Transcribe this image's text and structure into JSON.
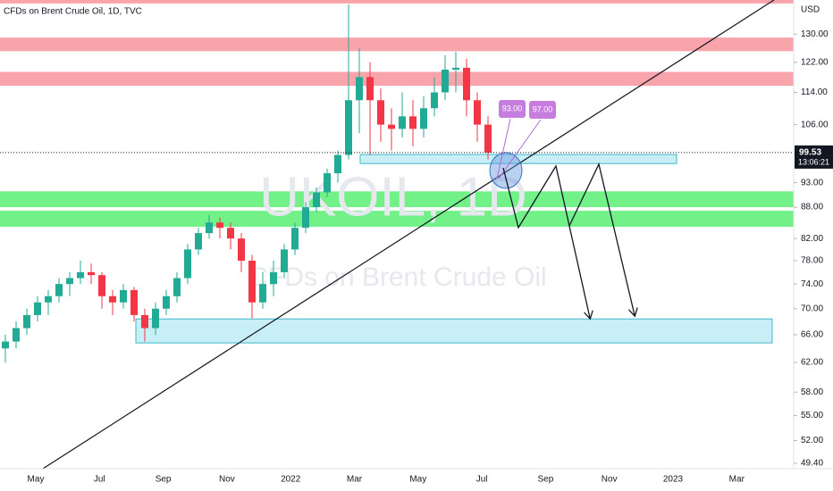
{
  "chart_data": {
    "type": "candlestick",
    "title": "CFDs on Brent Crude Oil, 1D, TVC",
    "watermark": "UKOIL, 1D",
    "watermark_subtitle": "CFDs on Brent Crude Oil",
    "currency": "USD",
    "log_scale": true,
    "grid": false,
    "up_color": "#22ab94",
    "down_color": "#f23645",
    "x_labels": [
      "May",
      "Jul",
      "Sep",
      "Nov",
      "2022",
      "Mar",
      "May",
      "Jul",
      "Sep",
      "Nov",
      "2023",
      "Mar"
    ],
    "candles": [
      [
        64,
        66,
        62,
        65
      ],
      [
        65,
        68,
        64,
        67
      ],
      [
        67,
        70,
        66,
        69
      ],
      [
        69,
        72,
        68,
        71
      ],
      [
        71,
        73,
        69,
        72
      ],
      [
        72,
        75,
        71,
        74
      ],
      [
        74,
        76,
        72,
        75
      ],
      [
        75,
        78,
        74,
        76
      ],
      [
        76,
        77.5,
        74,
        75.5
      ],
      [
        75.5,
        76,
        70,
        72
      ],
      [
        72,
        73,
        69,
        71
      ],
      [
        71,
        74,
        70,
        73
      ],
      [
        73,
        73.5,
        68,
        69
      ],
      [
        69,
        70,
        65,
        67
      ],
      [
        67,
        71,
        66,
        70
      ],
      [
        70,
        73,
        69,
        72
      ],
      [
        72,
        76,
        71,
        75
      ],
      [
        75,
        81,
        74,
        80
      ],
      [
        80,
        84,
        79,
        83
      ],
      [
        83,
        86.5,
        82,
        85
      ],
      [
        85,
        86,
        82,
        84
      ],
      [
        84,
        85,
        80,
        82
      ],
      [
        82,
        83,
        76,
        78
      ],
      [
        78,
        79,
        68.5,
        71
      ],
      [
        71,
        76,
        70,
        74
      ],
      [
        74,
        78,
        72,
        76
      ],
      [
        76,
        81,
        75,
        80
      ],
      [
        80,
        85,
        79,
        84
      ],
      [
        84,
        89,
        83,
        88
      ],
      [
        88,
        92,
        87,
        91
      ],
      [
        91,
        96,
        90,
        95
      ],
      [
        95,
        100,
        93,
        99
      ],
      [
        99,
        139,
        98,
        112
      ],
      [
        112,
        126,
        104,
        118
      ],
      [
        118,
        122,
        99,
        112
      ],
      [
        112,
        115,
        102,
        106
      ],
      [
        106,
        110,
        100,
        105
      ],
      [
        105,
        114,
        103,
        108
      ],
      [
        108,
        112,
        101,
        105
      ],
      [
        105,
        113,
        103,
        110
      ],
      [
        110,
        118,
        108,
        114
      ],
      [
        114,
        124,
        112,
        120
      ],
      [
        120,
        125,
        114,
        120.5
      ],
      [
        120.5,
        123,
        108,
        112
      ],
      [
        112,
        114,
        102,
        106
      ],
      [
        106,
        108,
        98,
        99.53
      ]
    ],
    "last_price": 99.53,
    "countdown": "13:06:21",
    "ylim": [
      48.8,
      140.4
    ],
    "yticks": [
      {
        "value": 130,
        "label": "130.00"
      },
      {
        "value": 122,
        "label": "122.00"
      },
      {
        "value": 114,
        "label": "114.00"
      },
      {
        "value": 106,
        "label": "106.00"
      },
      {
        "value": 93,
        "label": "93.00"
      },
      {
        "value": 88,
        "label": "88.00"
      },
      {
        "value": 82,
        "label": "82.00"
      },
      {
        "value": 78,
        "label": "78.00"
      },
      {
        "value": 74,
        "label": "74.00"
      },
      {
        "value": 70,
        "label": "70.00"
      },
      {
        "value": 66,
        "label": "66.00"
      },
      {
        "value": 62,
        "label": "62.00"
      },
      {
        "value": 58,
        "label": "58.00"
      },
      {
        "value": 55,
        "label": "55.00"
      },
      {
        "value": 52,
        "label": "52.00"
      },
      {
        "value": 49.4,
        "label": "49.40"
      }
    ],
    "resistance_zones": [
      [
        139.3,
        140.4
      ],
      [
        125.1,
        129.0
      ],
      [
        115.7,
        119.4
      ]
    ],
    "support_zones": [
      [
        88.0,
        91.2
      ],
      [
        84.2,
        87.3
      ]
    ],
    "target_zones": [
      [
        97.1,
        99.1
      ],
      [
        64.8,
        68.4
      ]
    ],
    "annotations": [
      "93.00",
      "97.00"
    ]
  }
}
